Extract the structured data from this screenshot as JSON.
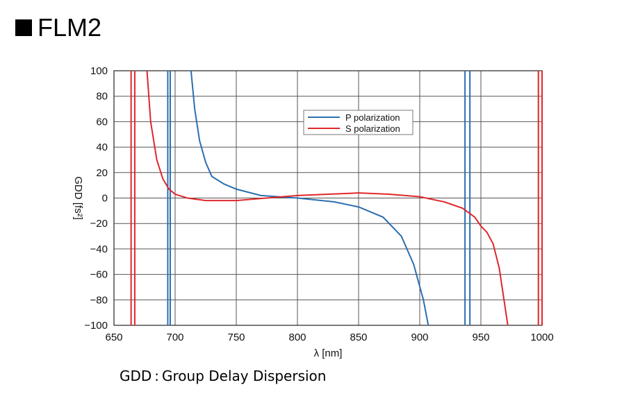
{
  "heading": {
    "title": "FLM2",
    "bullet_icon": "square-bullet-icon"
  },
  "footnote": "GDD : Group Delay Dispersion",
  "colors": {
    "p": "#2a6fb0",
    "s": "#e0262a",
    "grid": "#555555"
  },
  "chart_data": {
    "type": "line",
    "title": "FLM2",
    "xlabel": "λ [nm]",
    "ylabel": "GDD [fs²]",
    "xlim": [
      650,
      1000
    ],
    "ylim": [
      -100,
      100
    ],
    "xticks": [
      "650",
      "700",
      "750",
      "800",
      "850",
      "900",
      "950",
      "1000"
    ],
    "yticks": [
      "100",
      "80",
      "60",
      "40",
      "20",
      "0",
      "−20",
      "−40",
      "−60",
      "−80",
      "−100"
    ],
    "grid": true,
    "legend": "top-center",
    "series": [
      {
        "name": "P polarization",
        "color": "#2a6fb0",
        "x": [
          694,
          694,
          696,
          696,
          713,
          716,
          720,
          725,
          730,
          740,
          750,
          770,
          800,
          830,
          850,
          870,
          885,
          895,
          903,
          907
        ],
        "y": [
          -100,
          100,
          100,
          -100,
          100,
          70,
          45,
          28,
          17,
          11,
          7,
          2,
          0,
          -3,
          -7,
          -15,
          -30,
          -52,
          -80,
          -100
        ],
        "segments": [
          [
            694,
            696
          ],
          [
            713,
            907
          ],
          [
            937,
            937
          ],
          [
            941,
            941
          ]
        ],
        "extra_vertical_x": [
          937,
          941
        ]
      },
      {
        "name": "S polarization",
        "color": "#e0262a",
        "x": [
          677,
          680,
          685,
          690,
          695,
          700,
          710,
          725,
          750,
          775,
          800,
          825,
          850,
          875,
          900,
          920,
          935,
          945,
          950,
          955,
          960,
          965,
          972
        ],
        "y": [
          100,
          60,
          30,
          15,
          7,
          3,
          0,
          -2,
          -2,
          0,
          2,
          3,
          4,
          3,
          1,
          -3,
          -8,
          -15,
          -22,
          -27,
          -36,
          -55,
          -100
        ],
        "extra_vertical_x": [
          664,
          667,
          997,
          1000
        ]
      }
    ]
  }
}
